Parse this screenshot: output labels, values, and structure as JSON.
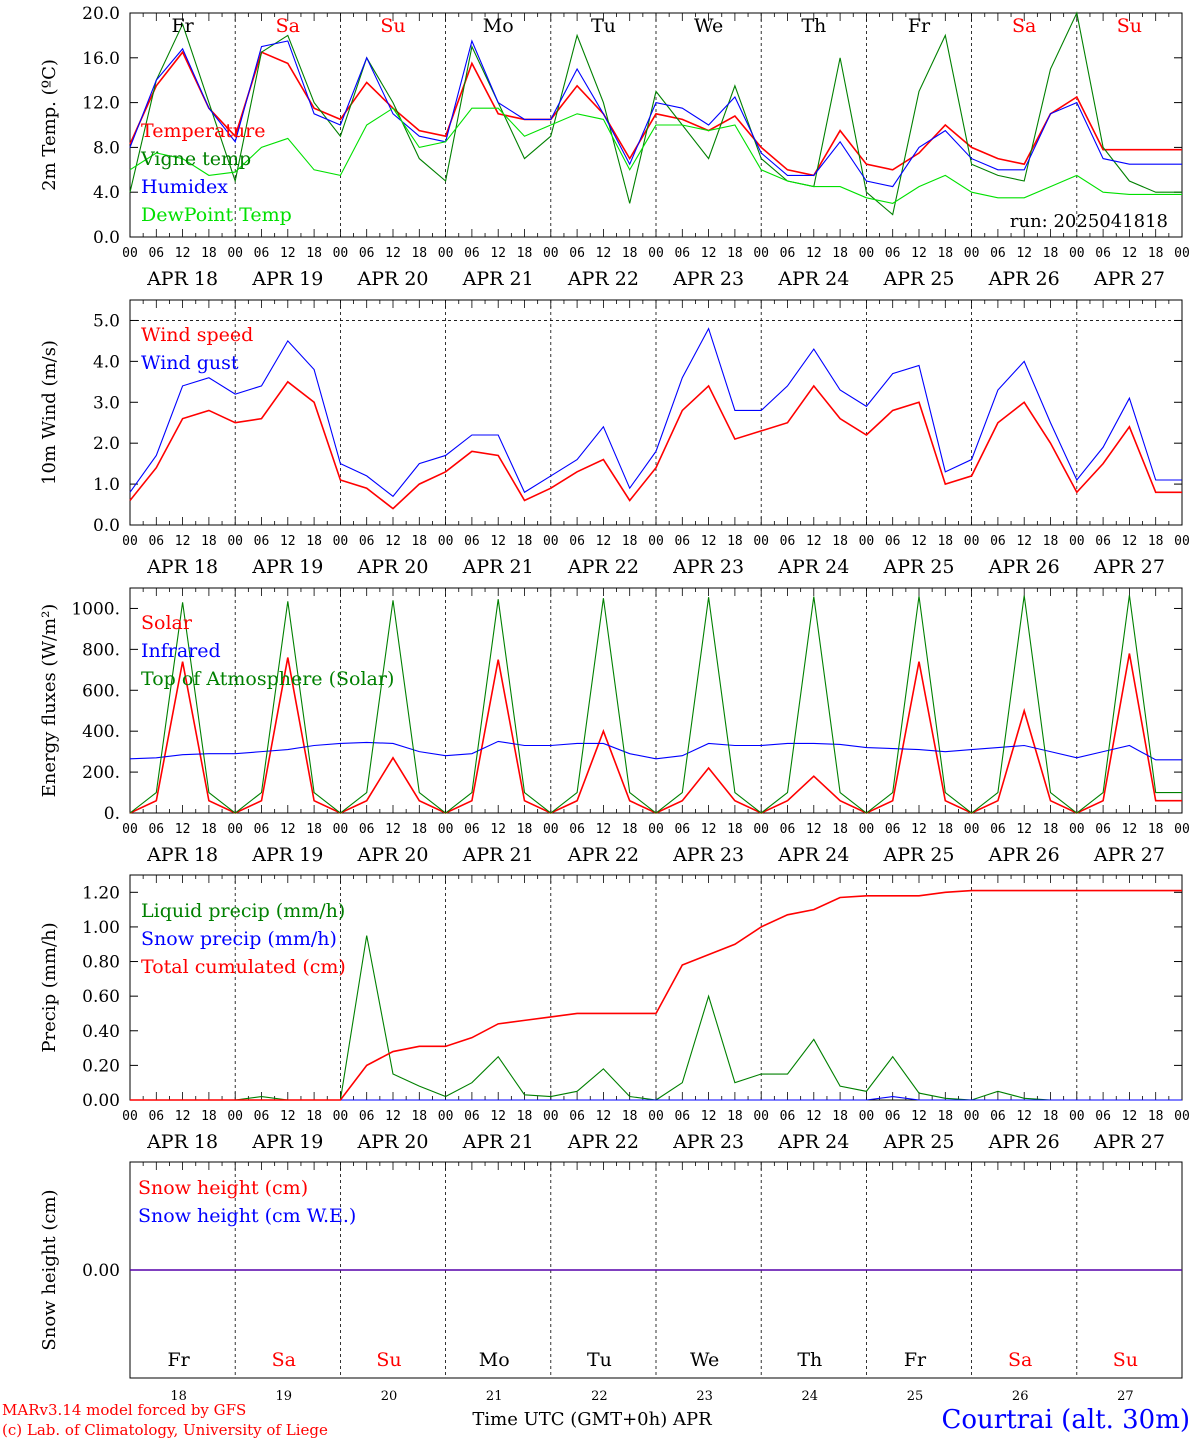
{
  "days": [
    "Fr",
    "Sa",
    "Su",
    "Mo",
    "Tu",
    "We",
    "Th",
    "Fr",
    "Sa",
    "Su"
  ],
  "weekend_flags": [
    false,
    true,
    true,
    false,
    false,
    false,
    false,
    false,
    true,
    true
  ],
  "dates": [
    "APR 18",
    "APR 19",
    "APR 20",
    "APR 21",
    "APR 22",
    "APR 23",
    "APR 24",
    "APR 25",
    "APR 26",
    "APR 27"
  ],
  "day_numbers": [
    "18",
    "19",
    "20",
    "21",
    "22",
    "23",
    "24",
    "25",
    "26",
    "27"
  ],
  "hour_labels": [
    "00",
    "06",
    "12",
    "18"
  ],
  "footer": {
    "model": "MARv3.14 model forced by GFS",
    "lab": "(c) Lab. of Climatology, University of Liege",
    "xlabel": "Time UTC (GMT+0h) APR",
    "station": "Courtrai (alt. 30m)"
  },
  "colors": {
    "red": "#ff0000",
    "green": "#008000",
    "blue": "#0000ff",
    "lightgreen": "#00e000"
  },
  "chart_data": [
    {
      "type": "line",
      "ylabel": "2m Temp. (ºC)",
      "ylim": [
        0,
        20
      ],
      "yticks": [
        "0.0",
        "4.0",
        "8.0",
        "12.0",
        "16.0",
        "20.0"
      ],
      "run_label": "run: 2025041818",
      "x_hours": [
        0,
        6,
        12,
        18,
        24,
        30,
        36,
        42,
        48,
        54,
        60,
        66,
        72,
        78,
        84,
        90,
        96,
        102,
        108,
        114,
        120,
        126,
        132,
        138,
        144,
        150,
        156,
        162,
        168,
        174,
        180,
        186,
        192,
        198,
        204,
        210,
        216,
        222,
        228,
        234
      ],
      "series": [
        {
          "name": "Temperature",
          "color": "#ff0000",
          "values": [
            8.3,
            13.5,
            16.5,
            11.5,
            9.0,
            16.5,
            15.5,
            11.5,
            10.5,
            13.8,
            11.5,
            9.5,
            9.0,
            15.5,
            11.0,
            10.5,
            10.5,
            13.5,
            11.0,
            7.0,
            11.0,
            10.5,
            9.5,
            10.8,
            8.0,
            6.0,
            5.5,
            9.5,
            6.5,
            6.0,
            7.5,
            10.0,
            8.0,
            7.0,
            6.5,
            11.0,
            12.5,
            7.8,
            7.8,
            7.8
          ]
        },
        {
          "name": "Vigne temp",
          "color": "#008000",
          "values": [
            4.0,
            14.0,
            19.0,
            12.0,
            5.0,
            16.5,
            18.0,
            12.0,
            9.0,
            16.0,
            12.0,
            7.0,
            5.0,
            17.0,
            12.0,
            7.0,
            9.0,
            18.0,
            12.0,
            3.0,
            13.0,
            10.0,
            7.0,
            13.5,
            7.0,
            5.0,
            4.5,
            16.0,
            4.0,
            2.0,
            13.0,
            18.0,
            6.5,
            5.5,
            5.0,
            15.0,
            20.0,
            8.0,
            5.0,
            4.0
          ]
        },
        {
          "name": "Humidex",
          "color": "#0000ff",
          "values": [
            8.0,
            14.0,
            16.8,
            11.5,
            8.5,
            17.0,
            17.5,
            11.0,
            10.0,
            16.0,
            11.0,
            9.0,
            8.5,
            17.5,
            12.0,
            10.5,
            10.5,
            15.0,
            11.0,
            6.5,
            12.0,
            11.5,
            10.0,
            12.5,
            7.5,
            5.5,
            5.5,
            8.5,
            5.0,
            4.5,
            8.0,
            9.5,
            7.0,
            6.0,
            6.0,
            11.0,
            12.0,
            7.0,
            6.5,
            6.5
          ]
        },
        {
          "name": "DewPoint Temp",
          "color": "#00e000",
          "values": [
            6.0,
            7.5,
            7.0,
            5.5,
            5.8,
            8.0,
            8.8,
            6.0,
            5.5,
            10.0,
            11.5,
            8.0,
            8.5,
            11.5,
            11.5,
            9.0,
            10.0,
            11.0,
            10.5,
            6.0,
            10.0,
            10.0,
            9.5,
            10.0,
            6.0,
            5.0,
            4.5,
            4.5,
            3.5,
            3.0,
            4.5,
            5.5,
            4.0,
            3.5,
            3.5,
            4.5,
            5.5,
            4.0,
            3.8,
            3.8
          ]
        }
      ]
    },
    {
      "type": "line",
      "ylabel": "10m Wind (m/s)",
      "ylim": [
        0,
        5.5
      ],
      "yticks": [
        "0.0",
        "1.0",
        "2.0",
        "3.0",
        "4.0",
        "5.0"
      ],
      "x_hours": [
        0,
        6,
        12,
        18,
        24,
        30,
        36,
        42,
        48,
        54,
        60,
        66,
        72,
        78,
        84,
        90,
        96,
        102,
        108,
        114,
        120,
        126,
        132,
        138,
        144,
        150,
        156,
        162,
        168,
        174,
        180,
        186,
        192,
        198,
        204,
        210,
        216,
        222,
        228,
        234
      ],
      "series": [
        {
          "name": "Wind speed",
          "color": "#ff0000",
          "values": [
            0.6,
            1.4,
            2.6,
            2.8,
            2.5,
            2.6,
            3.5,
            3.0,
            1.1,
            0.9,
            0.4,
            1.0,
            1.3,
            1.8,
            1.7,
            0.6,
            0.9,
            1.3,
            1.6,
            0.6,
            1.4,
            2.8,
            3.4,
            2.1,
            2.3,
            2.5,
            3.4,
            2.6,
            2.2,
            2.8,
            3.0,
            1.0,
            1.2,
            2.5,
            3.0,
            2.0,
            0.8,
            1.5,
            2.4,
            0.8
          ]
        },
        {
          "name": "Wind gust",
          "color": "#0000ff",
          "values": [
            0.8,
            1.7,
            3.4,
            3.6,
            3.2,
            3.4,
            4.5,
            3.8,
            1.5,
            1.2,
            0.7,
            1.5,
            1.7,
            2.2,
            2.2,
            0.8,
            1.2,
            1.6,
            2.4,
            0.9,
            1.8,
            3.6,
            4.8,
            2.8,
            2.8,
            3.4,
            4.3,
            3.3,
            2.9,
            3.7,
            3.9,
            1.3,
            1.6,
            3.3,
            4.0,
            2.5,
            1.1,
            1.9,
            3.1,
            1.1
          ]
        }
      ]
    },
    {
      "type": "line",
      "ylabel": "Energy fluxes (W/m²)",
      "ylim": [
        0,
        1100
      ],
      "yticks": [
        "0.",
        "200.",
        "400.",
        "600.",
        "800.",
        "1000."
      ],
      "x_hours": [
        0,
        6,
        12,
        18,
        24,
        30,
        36,
        42,
        48,
        54,
        60,
        66,
        72,
        78,
        84,
        90,
        96,
        102,
        108,
        114,
        120,
        126,
        132,
        138,
        144,
        150,
        156,
        162,
        168,
        174,
        180,
        186,
        192,
        198,
        204,
        210,
        216,
        222,
        228,
        234
      ],
      "series": [
        {
          "name": "Solar",
          "color": "#ff0000",
          "values": [
            0,
            60,
            740,
            60,
            0,
            60,
            760,
            60,
            0,
            60,
            270,
            60,
            0,
            60,
            750,
            60,
            0,
            60,
            400,
            60,
            0,
            60,
            220,
            60,
            0,
            60,
            180,
            60,
            0,
            60,
            740,
            60,
            0,
            60,
            500,
            60,
            0,
            60,
            780,
            60
          ]
        },
        {
          "name": "Infrared",
          "color": "#0000ff",
          "values": [
            265,
            270,
            285,
            290,
            290,
            300,
            310,
            330,
            340,
            345,
            340,
            300,
            280,
            290,
            350,
            330,
            330,
            340,
            340,
            290,
            265,
            280,
            340,
            330,
            330,
            340,
            340,
            335,
            320,
            315,
            310,
            300,
            310,
            320,
            330,
            300,
            270,
            300,
            330,
            260
          ]
        },
        {
          "name": "Top of Atmosphere (Solar)",
          "color": "#008000",
          "values": [
            0,
            100,
            1030,
            100,
            0,
            100,
            1035,
            100,
            0,
            100,
            1040,
            100,
            0,
            100,
            1045,
            100,
            0,
            100,
            1050,
            100,
            0,
            100,
            1055,
            100,
            0,
            100,
            1058,
            100,
            0,
            100,
            1060,
            100,
            0,
            100,
            1063,
            100,
            0,
            100,
            1065,
            100
          ]
        }
      ]
    },
    {
      "type": "line",
      "ylabel": "Precip (mm/h)",
      "ylim": [
        0,
        1.3
      ],
      "yticks": [
        "0.00",
        "0.20",
        "0.40",
        "0.60",
        "0.80",
        "1.00",
        "1.20"
      ],
      "x_hours": [
        0,
        6,
        12,
        18,
        24,
        30,
        36,
        42,
        48,
        54,
        60,
        66,
        72,
        78,
        84,
        90,
        96,
        102,
        108,
        114,
        120,
        126,
        132,
        138,
        144,
        150,
        156,
        162,
        168,
        174,
        180,
        186,
        192,
        198,
        204,
        210,
        216,
        222,
        228,
        234
      ],
      "series": [
        {
          "name": "Liquid precip (mm/h)",
          "color": "#008000",
          "values": [
            0,
            0,
            0,
            0,
            0,
            0.02,
            0,
            0,
            0,
            0.95,
            0.15,
            0.08,
            0.02,
            0.1,
            0.25,
            0.03,
            0.02,
            0.05,
            0.18,
            0.02,
            0,
            0.1,
            0.6,
            0.1,
            0.15,
            0.15,
            0.35,
            0.08,
            0.05,
            0.25,
            0.04,
            0.01,
            0,
            0.05,
            0.01,
            0,
            0,
            0,
            0,
            0
          ]
        },
        {
          "name": "Snow precip (mm/h)",
          "color": "#0000ff",
          "values": [
            0,
            0,
            0,
            0,
            0,
            0,
            0,
            0,
            0,
            0,
            0,
            0,
            0,
            0,
            0,
            0,
            0,
            0,
            0,
            0,
            0,
            0,
            0,
            0,
            0,
            0,
            0,
            0,
            0,
            0.02,
            0,
            0,
            0,
            0,
            0,
            0,
            0,
            0,
            0,
            0
          ]
        },
        {
          "name": "Total cumulated (cm)",
          "color": "#ff0000",
          "values": [
            0,
            0,
            0,
            0,
            0,
            0,
            0,
            0,
            0,
            0.2,
            0.28,
            0.31,
            0.31,
            0.36,
            0.44,
            0.46,
            0.48,
            0.5,
            0.5,
            0.5,
            0.5,
            0.78,
            0.84,
            0.9,
            1.0,
            1.07,
            1.1,
            1.17,
            1.18,
            1.18,
            1.18,
            1.2,
            1.21,
            1.21,
            1.21,
            1.21,
            1.21,
            1.21,
            1.21,
            1.21
          ]
        }
      ]
    },
    {
      "type": "line",
      "ylabel": "Snow height (cm)",
      "ylim": [
        -1,
        1
      ],
      "yticks": [
        "0.00"
      ],
      "series": [
        {
          "name": "Snow height (cm)",
          "color": "#ff0000",
          "values": [
            0,
            0
          ]
        },
        {
          "name": "Snow height (cm W.E.)",
          "color": "#0000ff",
          "values": [
            0,
            0
          ]
        }
      ]
    }
  ]
}
